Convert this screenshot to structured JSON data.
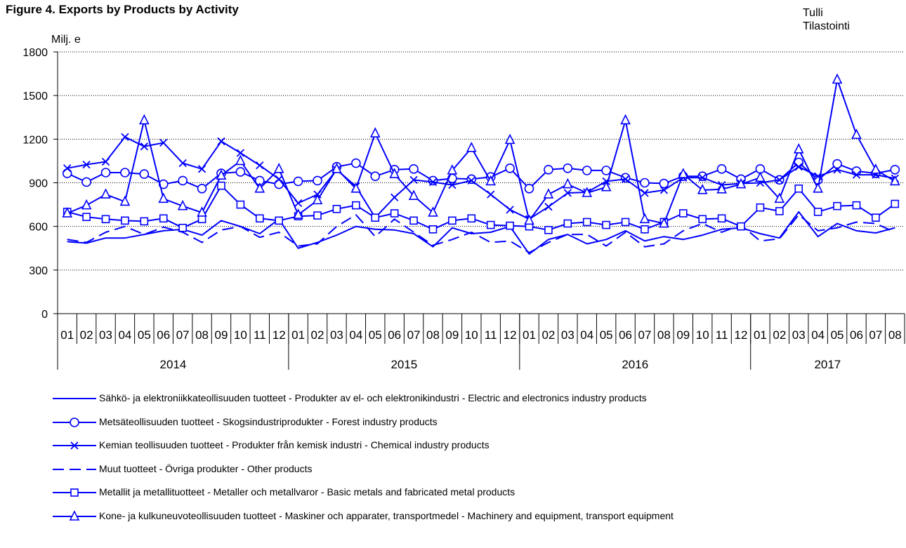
{
  "header": {
    "title": "Figure 4. Exports by Products by Activity",
    "source_line1": "Tulli",
    "source_line2": "Tilastointi"
  },
  "colors": {
    "series": "#0000ff",
    "axis": "#000000",
    "grid": "#000000"
  },
  "chart_data": {
    "type": "line",
    "title": "Figure 4. Exports by Products by Activity",
    "ylabel": "Milj. e",
    "xlabel": "",
    "ylim": [
      0,
      1800
    ],
    "yticks": [
      0,
      300,
      600,
      900,
      1200,
      1500,
      1800
    ],
    "grid": "horizontal dotted",
    "legend_position": "bottom",
    "months": [
      "01",
      "02",
      "03",
      "04",
      "05",
      "06",
      "07",
      "08",
      "09",
      "10",
      "11",
      "12",
      "01",
      "02",
      "03",
      "04",
      "05",
      "06",
      "07",
      "08",
      "09",
      "10",
      "11",
      "12",
      "01",
      "02",
      "03",
      "04",
      "05",
      "06",
      "07",
      "08",
      "09",
      "10",
      "11",
      "12",
      "01",
      "02",
      "03",
      "04",
      "05",
      "06",
      "07",
      "08"
    ],
    "years": [
      {
        "label": "2014",
        "months": 12
      },
      {
        "label": "2015",
        "months": 12
      },
      {
        "label": "2016",
        "months": 12
      },
      {
        "label": "2017",
        "months": 8
      }
    ],
    "series": [
      {
        "name": "Sähkö- ja elektroniikkateollisuuden tuotteet - Produkter av el- och elektronikindustri - Electric and electronics industry products",
        "marker": "none",
        "dash": "solid",
        "values": [
          495,
          485,
          520,
          520,
          545,
          570,
          580,
          540,
          640,
          600,
          550,
          650,
          450,
          490,
          540,
          600,
          580,
          575,
          550,
          460,
          590,
          550,
          560,
          600,
          410,
          510,
          545,
          480,
          510,
          570,
          500,
          530,
          510,
          540,
          580,
          590,
          550,
          520,
          700,
          530,
          620,
          570,
          555,
          590
        ]
      },
      {
        "name": "Metsäteollisuuden tuotteet - Skogsindustriprodukter - Forest industry products",
        "marker": "circle",
        "dash": "solid",
        "values": [
          965,
          905,
          970,
          970,
          960,
          890,
          915,
          860,
          965,
          975,
          915,
          890,
          910,
          915,
          1010,
          1035,
          945,
          990,
          995,
          915,
          930,
          925,
          940,
          1000,
          860,
          990,
          1000,
          985,
          985,
          935,
          900,
          895,
          945,
          945,
          995,
          925,
          995,
          920,
          1040,
          920,
          1030,
          980,
          965,
          990
        ]
      },
      {
        "name": "Kemian teollisuuden tuotteet - Produkter från kemisk industri - Chemical industry products",
        "marker": "x",
        "dash": "solid",
        "values": [
          1000,
          1025,
          1045,
          1215,
          1150,
          1175,
          1035,
          995,
          1185,
          1105,
          1020,
          925,
          760,
          820,
          990,
          875,
          660,
          800,
          920,
          905,
          885,
          915,
          820,
          715,
          650,
          735,
          830,
          835,
          910,
          925,
          830,
          850,
          935,
          935,
          885,
          895,
          900,
          920,
          1010,
          945,
          990,
          955,
          955,
          930
        ]
      },
      {
        "name": "Muut tuotteet - Övriga produkter - Other products",
        "marker": "none",
        "dash": "dashed",
        "values": [
          510,
          490,
          560,
          600,
          545,
          595,
          560,
          490,
          575,
          600,
          525,
          560,
          465,
          480,
          600,
          680,
          530,
          650,
          560,
          470,
          510,
          560,
          490,
          500,
          420,
          490,
          545,
          545,
          465,
          560,
          460,
          480,
          570,
          620,
          560,
          610,
          500,
          515,
          680,
          570,
          590,
          630,
          620,
          560
        ]
      },
      {
        "name": "Metallit ja metallituotteet - Metaller och metallvaror - Basic metals and fabricated metal products",
        "marker": "square",
        "dash": "solid",
        "values": [
          700,
          665,
          650,
          640,
          635,
          655,
          590,
          650,
          880,
          750,
          655,
          640,
          670,
          675,
          720,
          745,
          660,
          690,
          640,
          580,
          640,
          655,
          610,
          605,
          600,
          575,
          620,
          630,
          610,
          630,
          580,
          630,
          690,
          650,
          655,
          600,
          730,
          705,
          860,
          700,
          740,
          745,
          660,
          755
        ]
      },
      {
        "name": "Kone- ja kulkuneuvoteollisuuden tuotteet - Maskiner och apparater, transportmedel -  Machinery and equipment, transport equipment",
        "marker": "triangle",
        "dash": "solid",
        "values": [
          690,
          745,
          820,
          770,
          1330,
          790,
          740,
          695,
          950,
          1050,
          860,
          995,
          680,
          780,
          995,
          860,
          1240,
          960,
          810,
          695,
          985,
          1140,
          910,
          1195,
          640,
          820,
          890,
          830,
          870,
          1330,
          650,
          620,
          960,
          850,
          855,
          890,
          935,
          790,
          1130,
          860,
          1610,
          1230,
          990,
          910
        ]
      }
    ]
  }
}
